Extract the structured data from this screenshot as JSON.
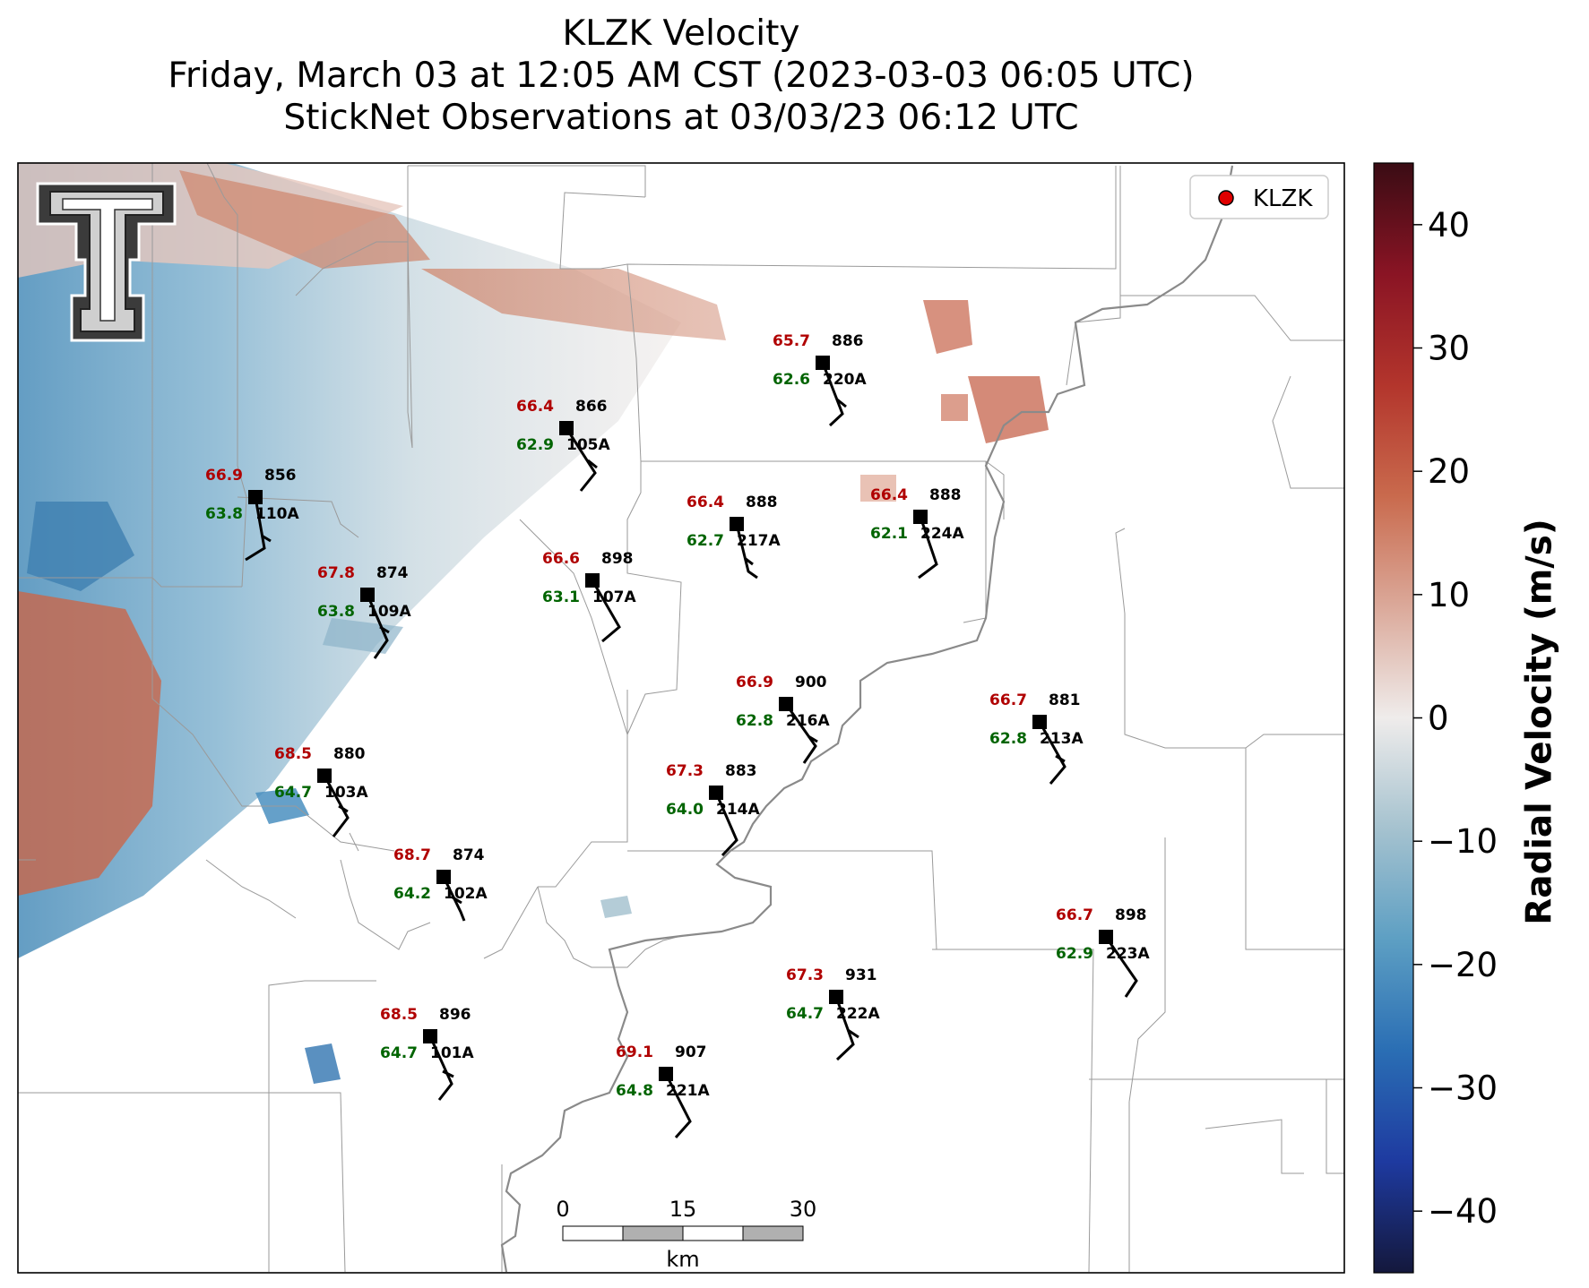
{
  "title": {
    "line1": "KLZK Velocity",
    "line2": "Friday, March 03 at 12:05 AM CST (2023-03-03 06:05 UTC)",
    "line3": "StickNet Observations at 03/03/23 06:12 UTC"
  },
  "legend": {
    "label": "KLZK",
    "marker_color": "#e00000"
  },
  "colorbar": {
    "label": "Radial Velocity (m/s)",
    "ticks": [
      "40",
      "30",
      "20",
      "10",
      "0",
      "−10",
      "−20",
      "−30",
      "−40"
    ],
    "range": [
      -45,
      45
    ]
  },
  "scalebar": {
    "ticks": [
      "0",
      "15",
      "30"
    ],
    "unit": "km"
  },
  "logo": {
    "description": "Texas Tech double-T logo"
  },
  "colors": {
    "temp": "#b00000",
    "dewpoint": "#006400",
    "pressure": "#000000",
    "river": "#8a8a8a",
    "border": "#9a9a9a"
  },
  "stations": [
    {
      "id": "220A",
      "temp": "65.7",
      "dew": "62.6",
      "pres": "886"
    },
    {
      "id": "105A",
      "temp": "66.4",
      "dew": "62.9",
      "pres": "866"
    },
    {
      "id": "110A",
      "temp": "66.9",
      "dew": "63.8",
      "pres": "856"
    },
    {
      "id": "217A",
      "temp": "66.4",
      "dew": "62.7",
      "pres": "888"
    },
    {
      "id": "224A",
      "temp": "66.4",
      "dew": "62.1",
      "pres": "888"
    },
    {
      "id": "107A",
      "temp": "66.6",
      "dew": "63.1",
      "pres": "898"
    },
    {
      "id": "109A",
      "temp": "67.8",
      "dew": "63.8",
      "pres": "874"
    },
    {
      "id": "216A",
      "temp": "66.9",
      "dew": "62.8",
      "pres": "900"
    },
    {
      "id": "213A",
      "temp": "66.7",
      "dew": "62.8",
      "pres": "881"
    },
    {
      "id": "103A",
      "temp": "68.5",
      "dew": "64.7",
      "pres": "880"
    },
    {
      "id": "214A",
      "temp": "67.3",
      "dew": "64.0",
      "pres": "883"
    },
    {
      "id": "102A",
      "temp": "68.7",
      "dew": "64.2",
      "pres": "874"
    },
    {
      "id": "223A",
      "temp": "66.7",
      "dew": "62.9",
      "pres": "898"
    },
    {
      "id": "222A",
      "temp": "67.3",
      "dew": "64.7",
      "pres": "931"
    },
    {
      "id": "101A",
      "temp": "68.5",
      "dew": "64.7",
      "pres": "896"
    },
    {
      "id": "221A",
      "temp": "69.1",
      "dew": "64.8",
      "pres": "907"
    }
  ]
}
